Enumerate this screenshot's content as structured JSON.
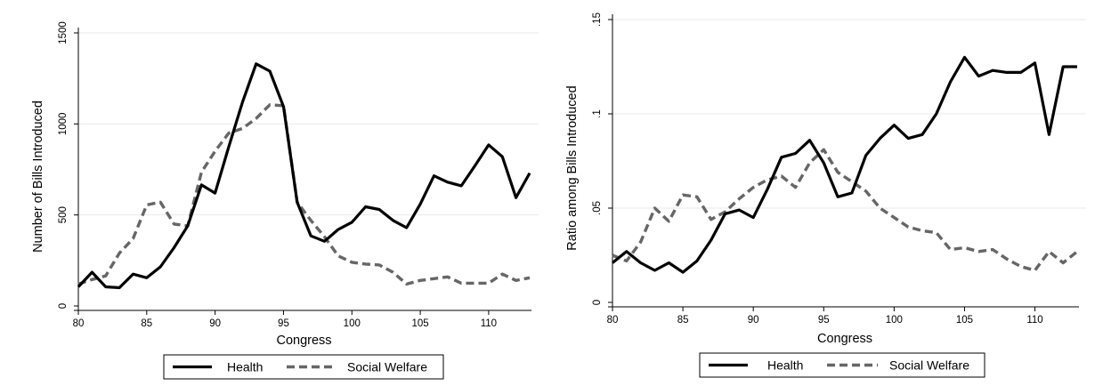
{
  "chart_data": [
    {
      "type": "line",
      "xlabel": "Congress",
      "ylabel": "Number of Bills Introduced",
      "xlim": [
        80,
        113
      ],
      "ylim": [
        0,
        1500
      ],
      "xticks": [
        "80",
        "85",
        "90",
        "95",
        "100",
        "105",
        "110"
      ],
      "yticks": [
        "0",
        "500",
        "1000",
        "1500"
      ],
      "grid": true,
      "legend_position": "bottom",
      "x": [
        80,
        81,
        82,
        83,
        84,
        85,
        86,
        87,
        88,
        89,
        90,
        91,
        92,
        93,
        94,
        95,
        96,
        97,
        98,
        99,
        100,
        101,
        102,
        103,
        104,
        105,
        106,
        107,
        108,
        109,
        110,
        111,
        112,
        113
      ],
      "series": [
        {
          "name": "Health",
          "style": "solid",
          "color": "#000000",
          "values": [
            105,
            185,
            105,
            100,
            175,
            155,
            215,
            320,
            440,
            665,
            620,
            875,
            1120,
            1330,
            1290,
            1095,
            570,
            385,
            355,
            420,
            460,
            545,
            530,
            470,
            430,
            560,
            715,
            680,
            660,
            770,
            885,
            820,
            595,
            730
          ]
        },
        {
          "name": "Social Welfare",
          "style": "dashed",
          "color": "#666666",
          "values": [
            120,
            145,
            165,
            290,
            370,
            555,
            570,
            450,
            440,
            735,
            850,
            950,
            975,
            1030,
            1105,
            1100,
            570,
            470,
            380,
            275,
            240,
            230,
            225,
            185,
            120,
            140,
            150,
            160,
            125,
            125,
            125,
            175,
            140,
            155
          ]
        }
      ]
    },
    {
      "type": "line",
      "xlabel": "Congress",
      "ylabel": "Ratio among Bills Introduced",
      "xlim": [
        80,
        113
      ],
      "ylim": [
        0,
        0.15
      ],
      "xticks": [
        "80",
        "85",
        "90",
        "95",
        "100",
        "105",
        "110"
      ],
      "yticks": [
        "0",
        ".05",
        ".1",
        ".15"
      ],
      "grid": true,
      "legend_position": "bottom",
      "x": [
        80,
        81,
        82,
        83,
        84,
        85,
        86,
        87,
        88,
        89,
        90,
        91,
        92,
        93,
        94,
        95,
        96,
        97,
        98,
        99,
        100,
        101,
        102,
        103,
        104,
        105,
        106,
        107,
        108,
        109,
        110,
        111,
        112,
        113
      ],
      "series": [
        {
          "name": "Health",
          "style": "solid",
          "color": "#000000",
          "values": [
            0.021,
            0.027,
            0.021,
            0.017,
            0.021,
            0.016,
            0.022,
            0.033,
            0.047,
            0.049,
            0.045,
            0.06,
            0.077,
            0.079,
            0.086,
            0.074,
            0.056,
            0.058,
            0.078,
            0.087,
            0.094,
            0.087,
            0.089,
            0.1,
            0.117,
            0.13,
            0.12,
            0.123,
            0.122,
            0.122,
            0.127,
            0.089,
            0.125,
            0.125
          ]
        },
        {
          "name": "Social Welfare",
          "style": "dashed",
          "color": "#666666",
          "values": [
            0.025,
            0.022,
            0.032,
            0.05,
            0.043,
            0.057,
            0.056,
            0.044,
            0.048,
            0.055,
            0.061,
            0.065,
            0.067,
            0.061,
            0.074,
            0.081,
            0.069,
            0.064,
            0.059,
            0.05,
            0.045,
            0.04,
            0.038,
            0.037,
            0.028,
            0.029,
            0.027,
            0.028,
            0.023,
            0.019,
            0.017,
            0.027,
            0.021,
            0.027
          ]
        }
      ]
    }
  ]
}
